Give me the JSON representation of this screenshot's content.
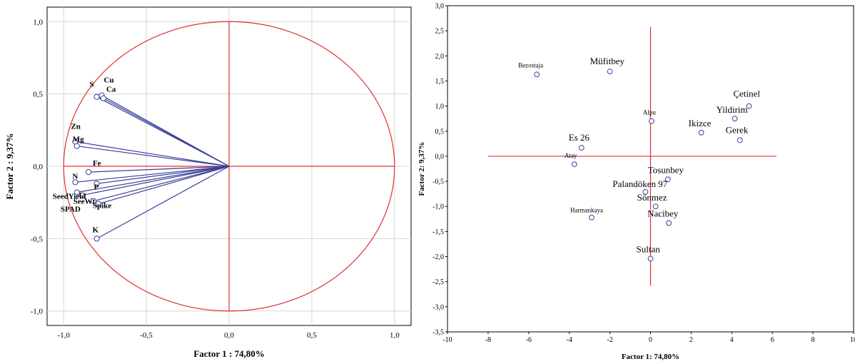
{
  "chart_data": [
    {
      "type": "scatter",
      "subtype": "correlation-circle",
      "xlabel": "Factor 1 : 74,80%",
      "ylabel": "Factor 2 :  9,37%",
      "xlim": [
        -1.1,
        1.1
      ],
      "ylim": [
        -1.1,
        1.1
      ],
      "xticks": [
        -1.0,
        -0.5,
        0.0,
        0.5,
        1.0
      ],
      "yticks": [
        -1.0,
        -0.5,
        0.0,
        0.5,
        1.0
      ],
      "xtick_labels": [
        "-1,0",
        "-0,5",
        "0,0",
        "0,5",
        "1,0"
      ],
      "ytick_labels": [
        "-1,0",
        "-0,5",
        "0,0",
        "0,5",
        "1,0"
      ],
      "grid": true,
      "colors": {
        "vectors": "#3a3f9c",
        "circle": "#e03030",
        "axes": "#e03030",
        "grid": "#d6d6d6"
      },
      "points": [
        {
          "label": "Cu",
          "x": -0.77,
          "y": 0.49
        },
        {
          "label": "S",
          "x": -0.8,
          "y": 0.48
        },
        {
          "label": "Ca",
          "x": -0.76,
          "y": 0.47
        },
        {
          "label": "Zn",
          "x": -0.93,
          "y": 0.17
        },
        {
          "label": "Mg",
          "x": -0.92,
          "y": 0.14
        },
        {
          "label": "Fe",
          "x": -0.85,
          "y": -0.04
        },
        {
          "label": "N",
          "x": -0.93,
          "y": -0.11
        },
        {
          "label": "P",
          "x": -0.8,
          "y": -0.12
        },
        {
          "label": "SeedYield",
          "x": -0.92,
          "y": -0.18
        },
        {
          "label": "SeeWt",
          "x": -0.89,
          "y": -0.2
        },
        {
          "label": "Spike",
          "x": -0.79,
          "y": -0.26
        },
        {
          "label": "SPAD",
          "x": -0.82,
          "y": -0.24
        },
        {
          "label": "K",
          "x": -0.8,
          "y": -0.5
        }
      ]
    },
    {
      "type": "scatter",
      "xlabel": "Factor 1: 74,80%",
      "ylabel": "Factor 2: 9,37%",
      "xlim": [
        -10,
        10
      ],
      "ylim": [
        -3.5,
        3.0
      ],
      "xticks": [
        -10,
        -8,
        -6,
        -4,
        -2,
        0,
        2,
        4,
        6,
        8,
        10
      ],
      "yticks": [
        -3.5,
        -3.0,
        -2.5,
        -2.0,
        -1.5,
        -1.0,
        -0.5,
        0.0,
        0.5,
        1.0,
        1.5,
        2.0,
        2.5,
        3.0
      ],
      "xtick_labels": [
        "-10",
        "-8",
        "-6",
        "-4",
        "-2",
        "0",
        "2",
        "4",
        "6",
        "8",
        "10"
      ],
      "ytick_labels": [
        "-3,5",
        "-3,0",
        "-2,5",
        "-2,0",
        "-1,5",
        "-1,0",
        "-0,5",
        "0,0",
        "0,5",
        "1,0",
        "1,5",
        "2,0",
        "2,5",
        "3,0"
      ],
      "grid": false,
      "colors": {
        "points": "#3a3f9c",
        "axes": "#e03030"
      },
      "points": [
        {
          "label": "Bezostaja",
          "x": -5.6,
          "y": 1.63
        },
        {
          "label": "Müfitbey",
          "x": -2.0,
          "y": 1.69
        },
        {
          "label": "Çetinel",
          "x": 4.85,
          "y": 1.0
        },
        {
          "label": "Yildirim",
          "x": 4.15,
          "y": 0.75
        },
        {
          "label": "Alpu",
          "x": 0.05,
          "y": 0.7
        },
        {
          "label": "Ikizce",
          "x": 2.5,
          "y": 0.47
        },
        {
          "label": "Gerek",
          "x": 4.4,
          "y": 0.32
        },
        {
          "label": "Es 26",
          "x": -3.4,
          "y": 0.17
        },
        {
          "label": "Atay",
          "x": -3.75,
          "y": -0.16
        },
        {
          "label": "Tosunbey",
          "x": 0.85,
          "y": -0.46
        },
        {
          "label": "Palandöken 97",
          "x": -0.25,
          "y": -0.71
        },
        {
          "label": "Sönmez",
          "x": 0.25,
          "y": -1.0
        },
        {
          "label": "Harmankaya",
          "x": -2.9,
          "y": -1.22
        },
        {
          "label": "Nacibey",
          "x": 0.9,
          "y": -1.33
        },
        {
          "label": "Sultan",
          "x": 0.0,
          "y": -2.04
        }
      ]
    }
  ]
}
